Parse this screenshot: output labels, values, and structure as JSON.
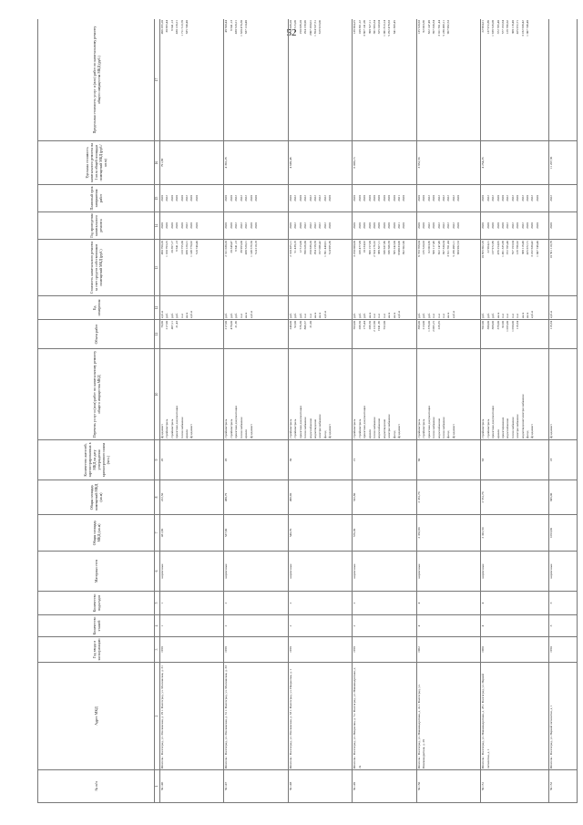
{
  "page_number": "52",
  "headers": [
    "№ п/п",
    "Адрес МКД",
    "Год ввода в эксплуатацию",
    "Количество этажей",
    "Количество подъездов",
    "Материал стен",
    "Общая площадь МКД (кв.м)",
    "Общая площадь помещений МКД (кв.м)",
    "Количество жителей, зарегистрированных в МКД на дату утверждения краткосрочного плана (чел.)",
    "Перечень услуг и (или) работ по капитальному ремонту общего имущества МКД",
    "Объем работ",
    "Ед. измерения",
    "Стоимость капитального ремонта за счет средств собственников помещений МКД (руб.)",
    "Год проведения капитального ремонта",
    "Плановый срок завершения работ",
    "Удельная стоимость капитального ремонта на 1 кв.м общей площади помещений МКД (руб./кв.м)",
    "Предельная стоимость услуг и (или) работ по капитальному ремонту общего имущества МКД (руб.)"
  ],
  "header_numbers": [
    "1",
    "2",
    "3",
    "4",
    "5",
    "6",
    "7",
    "8",
    "9",
    "10",
    "11",
    "12",
    "13",
    "14",
    "15",
    "16",
    "17"
  ],
  "rows": [
    {
      "n": "50.146",
      "addr": "Ипотечн.: Волгоград, ул. Московская, д. 29 г. Волгоград, ул. Московская, д. 31",
      "year": "1958",
      "floors": "1",
      "entr": "1",
      "mat": "кирпичные",
      "area": "431,90",
      "area2": "222,50",
      "people": "26",
      "work": [
        "фундамент",
        "стройконтроль",
        "стройконтроль",
        "проектная документация",
        "теплоснабжение",
        "кровля",
        "фундамент"
      ],
      "vol": [
        "70,60",
        "",
        "",
        "",
        "217,00",
        "467,11",
        "21,43"
      ],
      "unit": [
        "куб.м",
        "руб.",
        "руб.",
        "руб.",
        "п.м",
        "кв.м",
        "куб.м"
      ],
      "cost": [
        "490 790,20",
        "1 160 793,25",
        "20 397,17",
        "9 641,13",
        "133 755,60",
        "430 120,21",
        "1 148 770,62",
        "510 740,40"
      ],
      "yr": [
        "2020",
        "2020",
        "2020",
        "2020",
        "2020",
        "2022",
        "2020",
        "2020"
      ],
      "yr2": [
        "2020",
        "2022",
        "2020",
        "2020",
        "2020",
        "2022",
        "2020",
        "2020"
      ],
      "unitcost": "791,88",
      "limit": [
        "496 295,20",
        "30 695,44",
        "9 641,13",
        "",
        "430 120,21",
        "1 711 513,70",
        "635 740,40"
      ]
    },
    {
      "n": "50.147",
      "addr": "Ипотечн.: Волгоград, ул. Московская, д. 31 г. Волгоград, ул. Московская, д. 33",
      "year": "1958",
      "floors": "2",
      "entr": "2",
      "mat": "кирпичные",
      "area": "537,60",
      "area2": "480,79",
      "people": "26",
      "work": [
        "стройконтроль",
        "стройконтроль",
        "проектная документация",
        "теплоснабжение",
        "кровля",
        "фундамент"
      ],
      "vol": [
        "",
        "",
        "",
        "217,00",
        "478,00",
        "21,36"
      ],
      "unit": [
        "руб.",
        "руб.",
        "руб.",
        "п.м",
        "кв.м",
        "куб.м"
      ],
      "cost": [
        "2 311 030,20",
        "20 348,47",
        "9 641,13",
        "38 995,00",
        "430 520,21",
        "1 148 579,50",
        "514 210,18"
      ],
      "yr": [
        "2020",
        "2020",
        "2022",
        "2022",
        "2022",
        "2020",
        "2020"
      ],
      "yr2": [
        "2020",
        "2020",
        "2022",
        "2022",
        "2022",
        "2020",
        "2020"
      ],
      "unitcost": "4 392,28",
      "limit": [
        "48 500,44",
        "9 641,13",
        "",
        "430 520,21",
        "1 620 470,30",
        "637 124,40"
      ]
    },
    {
      "n": "50.148",
      "addr": "Ипотечн.: Волгоград, ул. Московская, д. 33 г. Волгоград, ул. Некрасова, д. 1",
      "year": "1958",
      "floors": "2",
      "entr": "2",
      "mat": "кирпичные",
      "area": "540,70",
      "area2": "496,90",
      "people": "30",
      "work": [
        "стройконтроль",
        "стройконтроль",
        "проектная документация",
        "теплоснабжение",
        "водоснабжение",
        "водоотведение",
        "электроснабжение",
        "фасад",
        "фундамент"
      ],
      "vol": [
        "",
        "",
        "",
        "240,00",
        "92,00",
        "576,30",
        "806,57",
        "21,00"
      ],
      "unit": [
        "руб.",
        "руб.",
        "руб.",
        "п.м",
        "п.м",
        "кв.м",
        "кв.м",
        "куб.м"
      ],
      "cost": [
        "2 310 425,11",
        "51 438,19",
        "12 515,09",
        "706 026,60",
        "250 638,20",
        "294 158,58",
        "197 086,42",
        "1 391 440,91",
        "514 985,36"
      ],
      "yr": [
        "2020",
        "2022",
        "2020",
        "2022",
        "2022",
        "2022",
        "2022",
        "2022",
        "2020"
      ],
      "yr2": [
        "2020",
        "2022",
        "2020",
        "2022",
        "2022",
        "2022",
        "2022",
        "2022",
        "2020"
      ],
      "unitcost": "4 649,48",
      "limit": [
        "58 638,20",
        "12 515,09",
        "",
        "250 638,20",
        "294 158,96",
        "2007 260,01",
        "1 854 537,51",
        "619 923,06"
      ]
    },
    {
      "n": "50.149",
      "addr": "Ипотечн.: Волгоград, ул. Некрасова, д. 5 г. Волгоград, ул. Новоквадратная, д. 2а",
      "year": "1958",
      "floors": "2",
      "entr": "2",
      "mat": "кирпичные",
      "area": "576,30",
      "area2": "532,80",
      "people": "15",
      "work": [
        "стройконтроль",
        "стройконтроль",
        "проектная документация",
        "кровля",
        "теплоснабжение",
        "водоснабжение",
        "водоотведение",
        "электроснабжение",
        "фасад",
        "фундамент"
      ],
      "vol": [
        "",
        "",
        "",
        "593,00",
        "206,50",
        "175,44",
        "206,50",
        "2 122,60",
        "1941,36",
        "552,00"
      ],
      "unit": [
        "руб.",
        "руб.",
        "руб.",
        "кв.м",
        "п.м",
        "п.м",
        "п.м",
        "кв.м",
        "кв.м",
        "куб.м"
      ],
      "cost": [
        "3 250 000,00",
        "109 477,08",
        "10 234,62",
        "699 157,00",
        "2 534 176,32",
        "388 827,11",
        "336 637,86",
        "336 506,58",
        "585 242,00",
        "3749233,06",
        "392 662,66"
      ],
      "yr": [
        "2020",
        "2020",
        "2020",
        "2020",
        "2020",
        "2020",
        "2020",
        "2020",
        "2020",
        "2021",
        "2020"
      ],
      "yr2": [
        "2020",
        "2020",
        "2020",
        "2020",
        "2020",
        "2020",
        "2020",
        "2020",
        "2020",
        "2021",
        "2020"
      ],
      "unitcost": "6 098,15",
      "limit": [
        "139 664,25",
        "108 361,22",
        "",
        "3 667 141,09",
        "398 527,11",
        "381 983,34",
        "325 243,04",
        "1 081 813,14",
        "5 292 478,63",
        "641 369,45"
      ]
    },
    {
      "n": "50.150",
      "addr": "Ипотечн.: Волгоград, ул. Новоквадратная, д. 2а г. Волгоград, ул. Новоквадратная, д. 28",
      "year": "1962",
      "floors": "4",
      "entr": "4",
      "mat": "кирпичные",
      "area": "2 332,60",
      "area2": "2 331,70",
      "people": "60",
      "work": [
        "стройконтроль",
        "стройконтроль",
        "проектная документация",
        "теплоснабжение",
        "водоснабжение",
        "теплоснабжение",
        "фасад",
        "фундамент"
      ],
      "vol": [
        "",
        "",
        "",
        "396,00",
        "213,00",
        "1 376,00",
        "2 095,15",
        "229,35"
      ],
      "unit": [
        "руб.",
        "руб.",
        "руб.",
        "п.м",
        "п.м",
        "п.м",
        "кв.м",
        "куб.м"
      ],
      "cost": [
        "8 733 768,64",
        "135 520,63",
        "62 063,36",
        "566 117,49",
        "822 147,48",
        "397 330,34",
        "3 611 591,44",
        "5 236 499,11",
        "960 982,53"
      ],
      "yr": [
        "2020",
        "2020",
        "2022",
        "2020",
        "2022",
        "2022",
        "2022",
        "2022",
        "2020"
      ],
      "yr2": [
        "2020",
        "2020",
        "2022",
        "2020",
        "2022",
        "2022",
        "2022",
        "2022",
        "2020"
      ],
      "unitcost": "3 852,56",
      "limit": [
        "135 520,63",
        "82 063,36",
        "",
        "822 147,48",
        "397 330,34",
        "3 011 591,44",
        "5 236 499,11",
        "967 982,53"
      ]
    },
    {
      "n": "50.151",
      "addr": "Ипотечн.: Волгоград, ул. Новоквадратная, д. 28 г. Волгоград, ул. Первой пятилетки, д. 1",
      "year": "1960",
      "floors": "4",
      "entr": "4",
      "mat": "кирпичные",
      "area": "2 341,50",
      "area2": "2 551,70",
      "people": "63",
      "work": [
        "стройконтроль",
        "стройконтроль",
        "проектная документация",
        "кровля",
        "проектирование",
        "водоснабжение",
        "теплоснабжение",
        "электроснабжение",
        "водоотведение/электроснабжение",
        "фасад",
        "фундамент"
      ],
      "vol": [
        "",
        "",
        "",
        "582,00",
        "380,00",
        "368,00",
        "379,00",
        "82,00",
        "1 055,00",
        "1 050,00",
        "119,34"
      ],
      "unit": [
        "руб.",
        "руб.",
        "руб.",
        "кв.м",
        "п.м",
        "п.м",
        "п.м",
        "п.м",
        "кв.м",
        "кв.м",
        "куб.м"
      ],
      "cost": [
        "10 855 662,28",
        "22 964,21",
        "137 972,89",
        "476 254,95",
        "1 491 335,68",
        "372 705,40",
        "557 193,64",
        "129 786,62",
        "308 118,40",
        "425 672,71",
        "3 232 630,42",
        "1 007 748,40"
      ],
      "yr": [
        "2020",
        "2020",
        "2020",
        "2020",
        "2020",
        "2022",
        "2022",
        "2020",
        "2022",
        "2020",
        "2020",
        "2020"
      ],
      "yr2": [
        "2020",
        "2022",
        "2022",
        "2020",
        "2020",
        "2022",
        "2022",
        "2020",
        "2022",
        "2020",
        "2022",
        "2020"
      ],
      "unitcost": "4 254,26",
      "limit": [
        "22 964,21",
        "137 972,89",
        "",
        "1 939 526,08",
        "372 705,40",
        "577 193,64",
        "129 786,62",
        "308 118,40",
        "425 672,71",
        "3 232 630,42",
        "1 007 748,40"
      ]
    },
    {
      "n": "50.152",
      "addr": "Ипотечн.: Волгоград, ул. Первой пятилетки, д. 1",
      "year": "1950",
      "floors": "3",
      "entr": "3",
      "mat": "кирпичные",
      "area": "1053,60",
      "area2": "945,00",
      "people": "18",
      "work": [
        "фундамент"
      ],
      "vol": [
        "119,34"
      ],
      "unit": [
        "куб.м"
      ],
      "cost": [
        "10 591 110,78"
      ],
      "yr": [
        "2020"
      ],
      "yr2": [
        "2022"
      ],
      "unitcost": "11 207,56",
      "limit": [
        ""
      ]
    }
  ]
}
